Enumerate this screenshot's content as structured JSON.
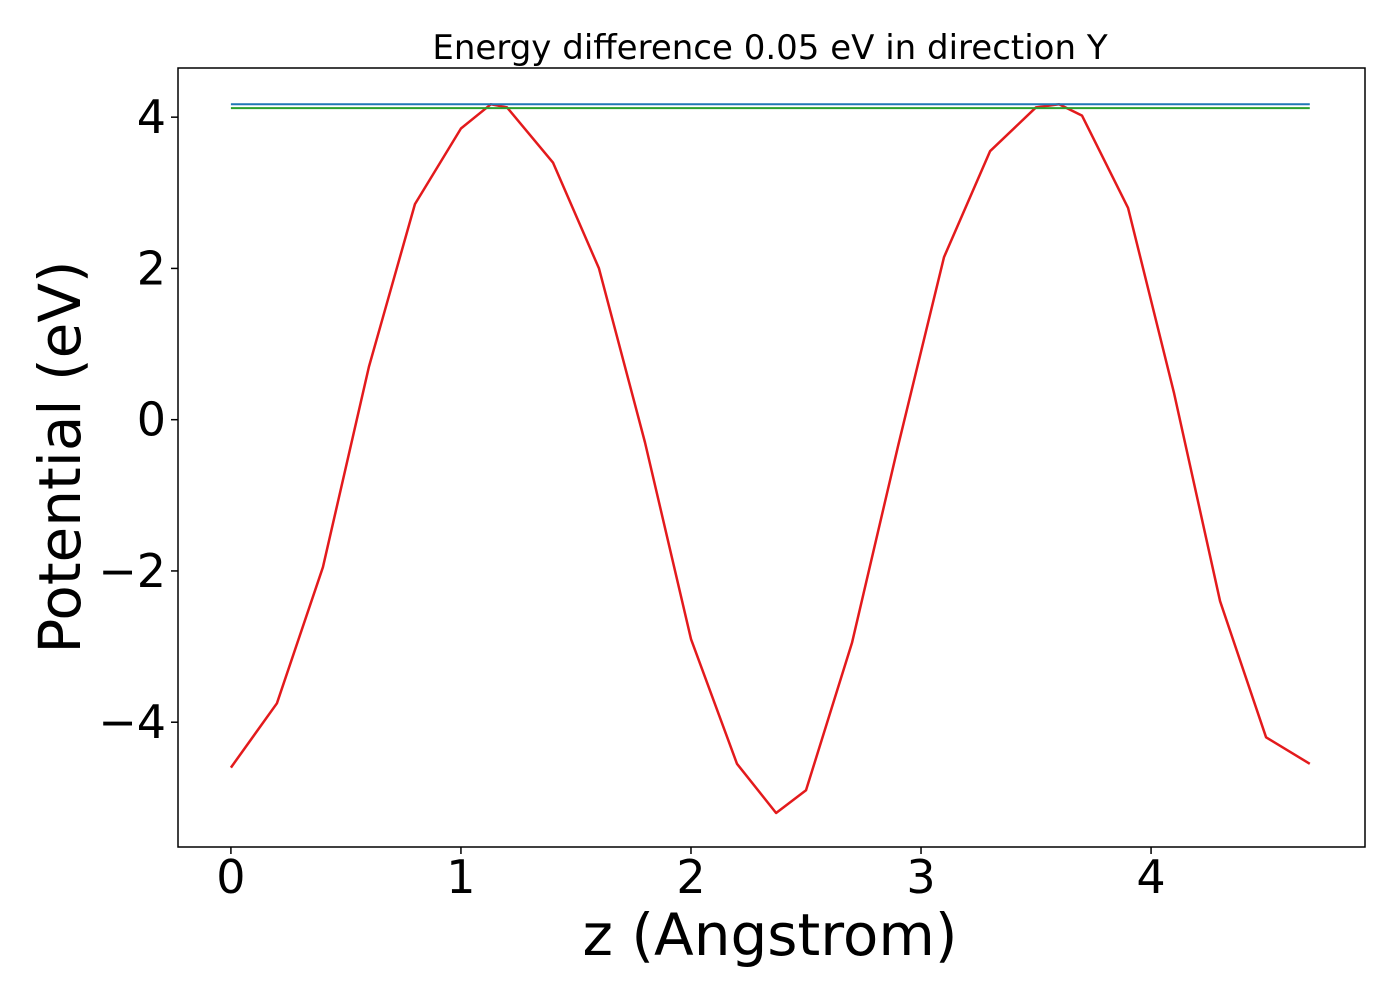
{
  "chart_data": {
    "type": "line",
    "title": "Energy difference 0.05 eV in direction Y",
    "xlabel": "z (Angstrom)",
    "ylabel": "Potential (eV)",
    "xlim": [
      -0.23,
      4.93
    ],
    "ylim": [
      -5.65,
      4.65
    ],
    "xticks": [
      0,
      1,
      2,
      3,
      4
    ],
    "yticks": [
      -4,
      -2,
      0,
      2,
      4
    ],
    "xtick_labels": [
      "0",
      "1",
      "2",
      "3",
      "4"
    ],
    "ytick_labels": [
      "−4",
      "−2",
      "0",
      "2",
      "4"
    ],
    "grid": false,
    "series": [
      {
        "color": "#e31a1c",
        "x": [
          0.0,
          0.2,
          0.4,
          0.6,
          0.8,
          1.0,
          1.13,
          1.2,
          1.4,
          1.6,
          1.8,
          2.0,
          2.2,
          2.37,
          2.5,
          2.7,
          2.9,
          3.1,
          3.3,
          3.5,
          3.6,
          3.7,
          3.9,
          4.1,
          4.3,
          4.5,
          4.69
        ],
        "y": [
          -4.6,
          -3.75,
          -1.95,
          0.7,
          2.85,
          3.85,
          4.17,
          4.13,
          3.4,
          2.0,
          -0.3,
          -2.9,
          -4.55,
          -5.2,
          -4.9,
          -2.95,
          -0.35,
          2.15,
          3.55,
          4.13,
          4.17,
          4.02,
          2.8,
          0.35,
          -2.4,
          -4.2,
          -4.55
        ]
      },
      {
        "color": "#1f77b4",
        "x": [
          0.0,
          4.69
        ],
        "y": [
          4.17,
          4.17
        ]
      },
      {
        "color": "#2ca02c",
        "x": [
          0.0,
          4.69
        ],
        "y": [
          4.12,
          4.12
        ]
      }
    ]
  }
}
